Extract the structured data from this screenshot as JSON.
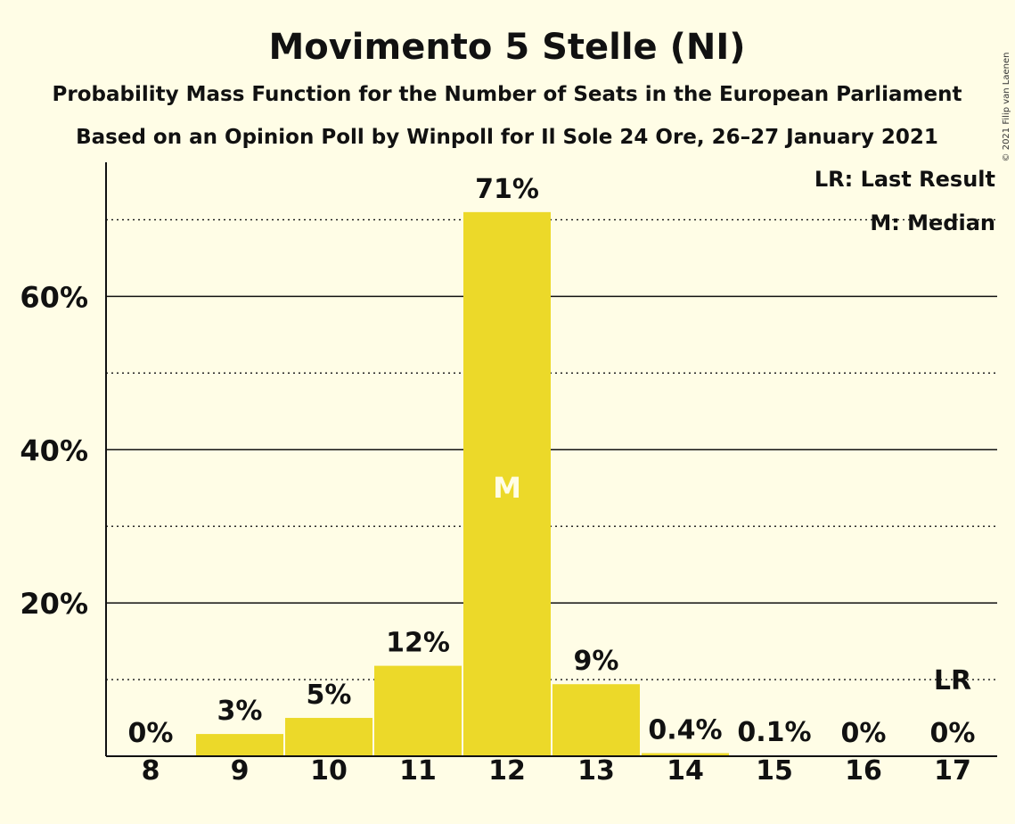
{
  "copyright": "© 2021 Filip van Laenen",
  "chart_data": {
    "type": "bar",
    "title": "Movimento 5 Stelle (NI)",
    "subtitle": "Probability Mass Function for the Number of Seats in the European Parliament",
    "subtitle2": "Based on an Opinion Poll by Winpoll for Il Sole 24 Ore, 26–27 January 2021",
    "categories": [
      "8",
      "9",
      "10",
      "11",
      "12",
      "13",
      "14",
      "15",
      "16",
      "17"
    ],
    "values": [
      0,
      2.9,
      5.0,
      11.8,
      71.0,
      9.4,
      0.4,
      0.1,
      0,
      0
    ],
    "data_labels": [
      "0%",
      "3%",
      "5%",
      "12%",
      "71%",
      "9%",
      "0.4%",
      "0.1%",
      "0%",
      "0%"
    ],
    "ylim": [
      0,
      77.5
    ],
    "yticks": [
      {
        "value": 20,
        "label": "20%"
      },
      {
        "value": 40,
        "label": "40%"
      },
      {
        "value": 60,
        "label": "60%"
      }
    ],
    "minor_gridlines": [
      10,
      30,
      50,
      70
    ],
    "median_category": "12",
    "median_marker": "M",
    "last_result_category": "17",
    "last_result_marker": "LR",
    "legend": [
      "LR: Last Result",
      "M: Median"
    ],
    "legend_position": "top-right",
    "bar_color": "#ecd929",
    "background_color": "#fffde6",
    "grid": true
  }
}
